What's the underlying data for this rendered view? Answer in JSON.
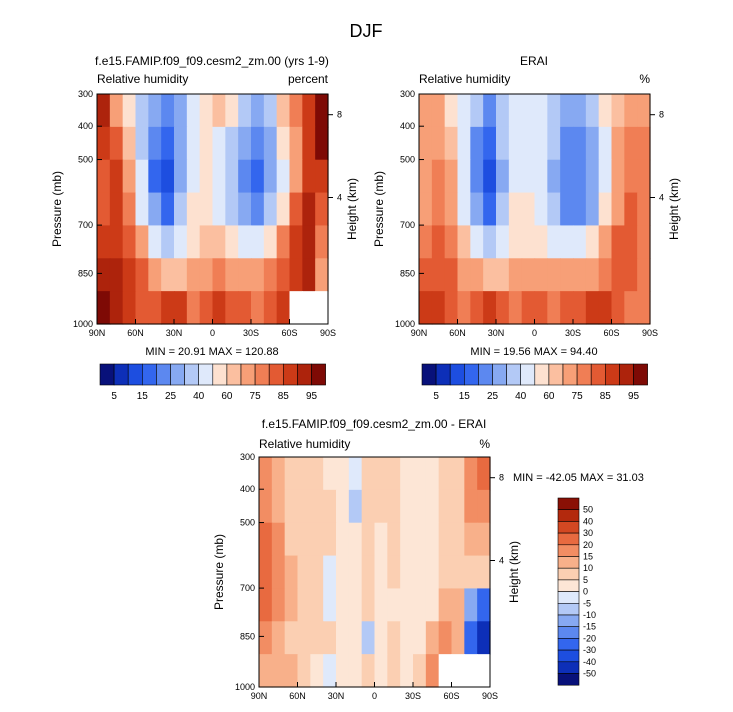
{
  "figure": {
    "title": "DJF"
  },
  "colors": {
    "rh_palette": [
      "#08117a",
      "#0d2fb8",
      "#1d4ee0",
      "#3366ee",
      "#5c88f0",
      "#87a9f2",
      "#b3c9f6",
      "#dfe9fb",
      "#fde1d0",
      "#fbbfa0",
      "#f79f77",
      "#f07e55",
      "#e35a33",
      "#cc3a17",
      "#ad230c",
      "#7e0a05"
    ],
    "diff_palette": [
      "#08117a",
      "#0d2fb8",
      "#1d4ee0",
      "#3366ee",
      "#5c88f0",
      "#87a9f2",
      "#b3c9f6",
      "#dfe9fb",
      "#fde6d6",
      "#fbcfb2",
      "#f8b08a",
      "#f28d63",
      "#e86a40",
      "#d34822",
      "#b3290d",
      "#8a1005"
    ]
  },
  "chart_data": [
    {
      "type": "heatmap",
      "title": "f.e15.FAMIP.f09_f09.cesm2_zm.00 (yrs 1-9)",
      "left_label": "Relative humidity",
      "right_label": "percent",
      "ylabel": "Pressure (mb)",
      "y2label": "Height (km)",
      "x_ticks": [
        "90N",
        "60N",
        "30N",
        "0",
        "30S",
        "60S",
        "90S"
      ],
      "y_ticks": [
        "300",
        "400",
        "500",
        "700",
        "850",
        "1000"
      ],
      "y2_ticks": [
        "8",
        "4"
      ],
      "stats": "MIN = 20.91   MAX = 120.88",
      "cells": [
        [
          90,
          70,
          55,
          30,
          25,
          20,
          28,
          40,
          55,
          62,
          50,
          35,
          27,
          32,
          60,
          75,
          85,
          95
        ],
        [
          85,
          80,
          60,
          35,
          20,
          15,
          28,
          40,
          50,
          45,
          35,
          25,
          22,
          28,
          50,
          70,
          85,
          95
        ],
        [
          80,
          85,
          70,
          40,
          18,
          12,
          25,
          45,
          50,
          40,
          30,
          20,
          18,
          25,
          45,
          70,
          88,
          85
        ],
        [
          80,
          85,
          75,
          45,
          25,
          18,
          30,
          50,
          55,
          45,
          35,
          25,
          22,
          30,
          55,
          80,
          90,
          80
        ],
        [
          85,
          85,
          80,
          65,
          45,
          35,
          45,
          55,
          62,
          60,
          50,
          45,
          45,
          55,
          75,
          85,
          90,
          75
        ],
        [
          92,
          90,
          85,
          80,
          70,
          60,
          60,
          65,
          72,
          75,
          70,
          70,
          70,
          75,
          80,
          88,
          90,
          70
        ],
        [
          95,
          92,
          85,
          80,
          80,
          88,
          85,
          75,
          80,
          85,
          80,
          80,
          75,
          80,
          85,
          -1,
          -1,
          -1
        ]
      ]
    },
    {
      "type": "heatmap",
      "title": "ERAI",
      "left_label": "Relative humidity",
      "right_label": "%",
      "ylabel": "Pressure (mb)",
      "y2label": "Height (km)",
      "x_ticks": [
        "90N",
        "60N",
        "30N",
        "0",
        "30S",
        "60S",
        "90S"
      ],
      "y_ticks": [
        "300",
        "400",
        "500",
        "700",
        "850",
        "1000"
      ],
      "y2_ticks": [
        "8",
        "4"
      ],
      "stats": "MIN = 19.56   MAX = 94.40",
      "cells": [
        [
          70,
          65,
          55,
          40,
          30,
          20,
          30,
          40,
          45,
          45,
          35,
          25,
          25,
          30,
          50,
          62,
          70,
          72
        ],
        [
          70,
          72,
          60,
          40,
          22,
          18,
          30,
          42,
          45,
          42,
          30,
          22,
          20,
          28,
          48,
          65,
          75,
          78
        ],
        [
          72,
          75,
          65,
          45,
          20,
          12,
          28,
          45,
          45,
          40,
          28,
          22,
          20,
          25,
          45,
          65,
          78,
          78
        ],
        [
          72,
          78,
          70,
          48,
          25,
          18,
          32,
          50,
          50,
          40,
          30,
          22,
          22,
          28,
          50,
          70,
          80,
          78
        ],
        [
          75,
          80,
          75,
          60,
          40,
          35,
          45,
          58,
          55,
          50,
          42,
          40,
          45,
          55,
          72,
          80,
          80,
          75
        ],
        [
          80,
          82,
          80,
          70,
          65,
          60,
          60,
          65,
          70,
          70,
          65,
          65,
          68,
          72,
          78,
          82,
          80,
          75
        ],
        [
          85,
          85,
          80,
          78,
          80,
          88,
          82,
          75,
          80,
          82,
          78,
          80,
          82,
          88,
          85,
          80,
          78,
          75
        ]
      ]
    },
    {
      "type": "heatmap",
      "title": "f.e15.FAMIP.f09_f09.cesm2_zm.00 - ERAI",
      "left_label": "Relative humidity",
      "right_label": "%",
      "ylabel": "Pressure (mb)",
      "y2label": "Height (km)",
      "x_ticks": [
        "90N",
        "60N",
        "30N",
        "0",
        "30S",
        "60S",
        "90S"
      ],
      "y_ticks": [
        "300",
        "400",
        "500",
        "700",
        "850",
        "1000"
      ],
      "y2_ticks": [
        "8",
        "4"
      ],
      "stats": "MIN = -42.05   MAX = 31.03",
      "cells": [
        [
          15,
          10,
          5,
          5,
          5,
          3,
          3,
          -3,
          5,
          5,
          5,
          3,
          3,
          3,
          5,
          8,
          15,
          20
        ],
        [
          18,
          10,
          5,
          5,
          5,
          5,
          3,
          -8,
          5,
          5,
          5,
          3,
          3,
          3,
          5,
          8,
          15,
          18
        ],
        [
          20,
          15,
          8,
          5,
          5,
          5,
          3,
          3,
          5,
          3,
          5,
          3,
          3,
          3,
          5,
          5,
          10,
          10
        ],
        [
          22,
          18,
          10,
          8,
          5,
          -5,
          3,
          3,
          5,
          3,
          5,
          3,
          3,
          3,
          5,
          5,
          5,
          5
        ],
        [
          22,
          18,
          10,
          8,
          5,
          -5,
          3,
          3,
          5,
          3,
          3,
          3,
          3,
          3,
          10,
          10,
          -15,
          -25
        ],
        [
          15,
          12,
          8,
          5,
          5,
          5,
          3,
          3,
          -8,
          3,
          5,
          3,
          3,
          10,
          15,
          10,
          -25,
          -42
        ],
        [
          12,
          10,
          10,
          8,
          3,
          -5,
          3,
          3,
          5,
          3,
          5,
          3,
          5,
          15,
          -1,
          -1,
          -1,
          -1
        ]
      ]
    }
  ],
  "colorbars": {
    "rh": {
      "labels": [
        "5",
        "15",
        "25",
        "40",
        "60",
        "75",
        "85",
        "95"
      ]
    },
    "diff": {
      "labels": [
        "50",
        "40",
        "30",
        "20",
        "15",
        "10",
        "5",
        "0",
        "-5",
        "-10",
        "-15",
        "-20",
        "-30",
        "-40",
        "-50"
      ]
    }
  }
}
